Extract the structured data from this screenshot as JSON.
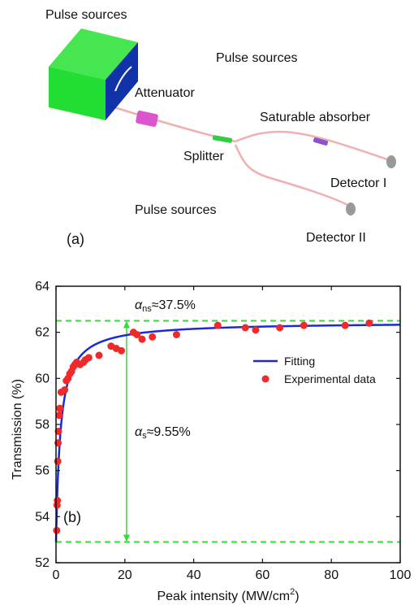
{
  "diagram": {
    "labels": {
      "pulse_sources_1": "Pulse sources",
      "pulse_sources_2": "Pulse sources",
      "pulse_sources_3": "Pulse sources",
      "attenuator": "Attenuator",
      "splitter": "Splitter",
      "saturable_absorber": "Saturable absorber",
      "detector_1": "Detector I",
      "detector_2": "Detector II",
      "panel_a": "(a)"
    },
    "colors": {
      "source_box": "#22dd33",
      "source_panel": "#1133aa",
      "attenuator": "#dd55cc",
      "splitter": "#33cc44",
      "fiber": "#f0b0b0",
      "detector": "#999999"
    }
  },
  "chart_data": {
    "type": "scatter",
    "xlabel": "Peak intensity (MW/cm",
    "xlabel_sup": "2",
    "xlabel_end": ")",
    "ylabel": "Transmission (%)",
    "panel_label": "(b)",
    "xlim": [
      0,
      100
    ],
    "ylim": [
      52,
      64
    ],
    "xticks": [
      0,
      20,
      40,
      60,
      80,
      100
    ],
    "yticks": [
      52,
      54,
      56,
      58,
      60,
      62,
      64
    ],
    "legend_position": "right",
    "annotations": {
      "alpha_ns": {
        "symbol": "α",
        "sub": "ns",
        "text": "≈37.5%"
      },
      "alpha_s": {
        "symbol": "α",
        "sub": "s",
        "text": "≈9.55%"
      }
    },
    "reference_lines": [
      62.5,
      52.9
    ],
    "arrow": {
      "x": 20.5,
      "y_from": 62.5,
      "y_to": 52.9
    },
    "colors": {
      "fit": "#1a2ad8",
      "data": "#ee2a2a",
      "reference": "#33dd33",
      "arrow": "#33dd33"
    },
    "series": [
      {
        "name": "Fitting",
        "kind": "line",
        "model": {
          "T0": 52.9,
          "alpha_s": 9.55,
          "Isat": 1.3
        }
      },
      {
        "name": "Experimental data",
        "kind": "scatter",
        "points": [
          [
            0.2,
            53.4
          ],
          [
            0.3,
            54.5
          ],
          [
            0.4,
            54.7
          ],
          [
            0.5,
            56.4
          ],
          [
            0.6,
            57.2
          ],
          [
            0.7,
            57.7
          ],
          [
            0.9,
            58.4
          ],
          [
            1.1,
            58.7
          ],
          [
            1.5,
            59.4
          ],
          [
            2.5,
            59.5
          ],
          [
            3.0,
            59.9
          ],
          [
            3.5,
            60.0
          ],
          [
            4.0,
            60.2
          ],
          [
            4.5,
            60.3
          ],
          [
            5.0,
            60.5
          ],
          [
            5.5,
            60.6
          ],
          [
            6.0,
            60.7
          ],
          [
            7.0,
            60.6
          ],
          [
            8.0,
            60.7
          ],
          [
            8.5,
            60.8
          ],
          [
            9.5,
            60.9
          ],
          [
            12.5,
            61.0
          ],
          [
            16.0,
            61.4
          ],
          [
            17.5,
            61.3
          ],
          [
            19.0,
            61.2
          ],
          [
            22.5,
            62.0
          ],
          [
            23.5,
            61.9
          ],
          [
            25.0,
            61.7
          ],
          [
            28.0,
            61.8
          ],
          [
            35.0,
            61.9
          ],
          [
            47.0,
            62.3
          ],
          [
            55.0,
            62.2
          ],
          [
            58.0,
            62.1
          ],
          [
            65.0,
            62.2
          ],
          [
            72.0,
            62.3
          ],
          [
            84.0,
            62.3
          ],
          [
            91.0,
            62.4
          ]
        ]
      }
    ]
  }
}
